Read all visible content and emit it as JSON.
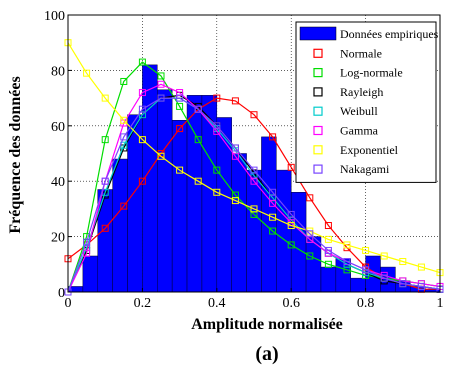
{
  "chart_data": {
    "type": "bar",
    "xlabel": "Amplitude normalisée",
    "ylabel": "Fréquence des données",
    "caption": "(a)",
    "xlim": [
      0,
      1
    ],
    "ylim": [
      0,
      100
    ],
    "xticks": [
      "0",
      "0.2",
      "0.4",
      "0.6",
      "0.8",
      "1"
    ],
    "yticks": [
      "0",
      "20",
      "40",
      "60",
      "80",
      "100"
    ],
    "grid": true,
    "legend_position": "top-right",
    "histogram": {
      "name": "Données empiriques",
      "color": "#0000ff",
      "bin_width": 0.04,
      "bin_start": 0,
      "values": [
        2,
        13,
        37,
        48,
        64,
        82,
        73,
        62,
        71,
        71,
        63,
        50,
        44,
        56,
        44,
        36,
        20,
        9,
        12,
        5,
        13,
        9,
        4,
        2,
        1
      ]
    },
    "series": [
      {
        "name": "Normale",
        "color": "#ff0000",
        "marker": "square",
        "x": [
          0,
          0.05,
          0.1,
          0.15,
          0.2,
          0.25,
          0.3,
          0.35,
          0.4,
          0.45,
          0.5,
          0.55,
          0.6,
          0.65,
          0.7,
          0.75,
          0.8,
          0.85,
          0.9,
          0.95,
          1
        ],
        "y": [
          12,
          17,
          23,
          31,
          40,
          50,
          59,
          66,
          70,
          69,
          64,
          56,
          45,
          34,
          24,
          16,
          9,
          5,
          3,
          1,
          1
        ]
      },
      {
        "name": "Log-normale",
        "color": "#00dd00",
        "marker": "square",
        "x": [
          0,
          0.05,
          0.1,
          0.15,
          0.2,
          0.25,
          0.3,
          0.35,
          0.4,
          0.45,
          0.5,
          0.55,
          0.6,
          0.65,
          0.7,
          0.75,
          0.8,
          0.85,
          0.9,
          0.95,
          1
        ],
        "y": [
          0,
          20,
          55,
          76,
          83,
          78,
          67,
          55,
          44,
          35,
          28,
          22,
          17,
          13,
          10,
          8,
          6,
          5,
          4,
          3,
          2
        ]
      },
      {
        "name": "Rayleigh",
        "color": "#000000",
        "marker": "square",
        "x": [
          0,
          0.05,
          0.1,
          0.15,
          0.2,
          0.25,
          0.3,
          0.35,
          0.4,
          0.45,
          0.5,
          0.55,
          0.6,
          0.65,
          0.7,
          0.75,
          0.8,
          0.85,
          0.9,
          0.95,
          1
        ],
        "y": [
          0,
          15,
          35,
          52,
          64,
          70,
          71,
          67,
          60,
          52,
          43,
          34,
          26,
          19,
          14,
          10,
          7,
          4,
          3,
          2,
          1
        ]
      },
      {
        "name": "Weibull",
        "color": "#00cccc",
        "marker": "square",
        "x": [
          0,
          0.05,
          0.1,
          0.15,
          0.2,
          0.25,
          0.3,
          0.35,
          0.4,
          0.45,
          0.5,
          0.55,
          0.6,
          0.65,
          0.7,
          0.75,
          0.8,
          0.85,
          0.9,
          0.95,
          1
        ],
        "y": [
          0,
          16,
          36,
          53,
          64,
          70,
          70,
          66,
          59,
          51,
          42,
          34,
          26,
          19,
          14,
          10,
          7,
          5,
          3,
          2,
          1
        ]
      },
      {
        "name": "Gamma",
        "color": "#ff00ff",
        "marker": "square",
        "x": [
          0,
          0.05,
          0.1,
          0.15,
          0.2,
          0.25,
          0.3,
          0.35,
          0.4,
          0.45,
          0.5,
          0.55,
          0.6,
          0.65,
          0.7,
          0.75,
          0.8,
          0.85,
          0.9,
          0.95,
          1
        ],
        "y": [
          0,
          14,
          40,
          61,
          72,
          75,
          72,
          66,
          58,
          49,
          40,
          32,
          25,
          19,
          14,
          11,
          8,
          6,
          4,
          3,
          2
        ]
      },
      {
        "name": "Exponentiel",
        "color": "#ffff00",
        "marker": "square",
        "x": [
          0,
          0.05,
          0.1,
          0.15,
          0.2,
          0.25,
          0.3,
          0.35,
          0.4,
          0.45,
          0.5,
          0.55,
          0.6,
          0.65,
          0.7,
          0.75,
          0.8,
          0.85,
          0.9,
          0.95,
          1
        ],
        "y": [
          90,
          79,
          70,
          62,
          55,
          49,
          44,
          40,
          36,
          33,
          30,
          27,
          24,
          22,
          19,
          17,
          15,
          13,
          11,
          9,
          7
        ]
      },
      {
        "name": "Nakagami",
        "color": "#7744ff",
        "marker": "square",
        "x": [
          0,
          0.05,
          0.1,
          0.15,
          0.2,
          0.25,
          0.3,
          0.35,
          0.4,
          0.45,
          0.5,
          0.55,
          0.6,
          0.65,
          0.7,
          0.75,
          0.8,
          0.85,
          0.9,
          0.95,
          1
        ],
        "y": [
          0,
          18,
          40,
          56,
          66,
          70,
          70,
          66,
          60,
          52,
          44,
          36,
          28,
          21,
          15,
          11,
          8,
          5,
          3,
          2,
          1
        ]
      }
    ]
  }
}
